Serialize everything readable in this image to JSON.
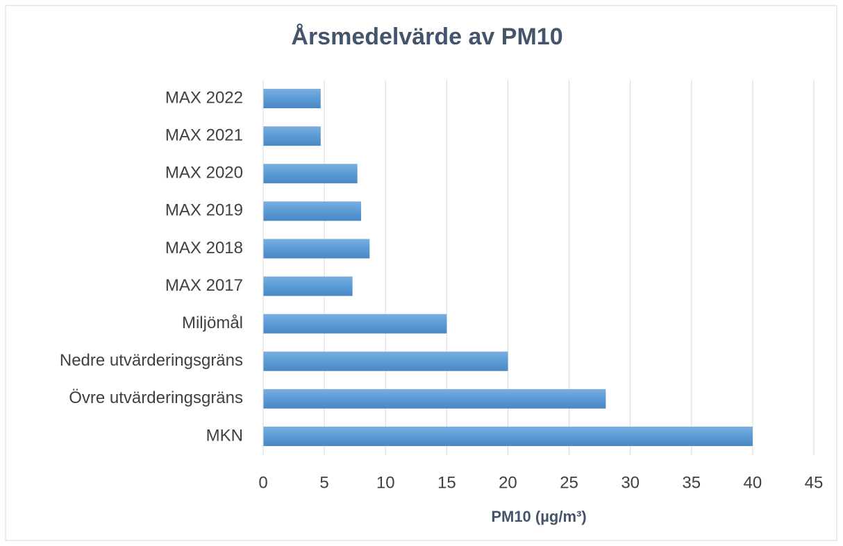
{
  "chart_data": {
    "type": "barh",
    "title": "Årsmedelvärde av PM10",
    "x_label": "PM10 (µg/m³)",
    "categories": [
      "MAX 2022",
      "MAX 2021",
      "MAX 2020",
      "MAX 2019",
      "MAX 2018",
      "MAX 2017",
      "Miljömål",
      "Nedre utvärderingsgräns",
      "Övre utvärderingsgräns",
      "MKN"
    ],
    "values": [
      4.7,
      4.7,
      7.7,
      8.0,
      8.7,
      7.3,
      15,
      20,
      28,
      40
    ],
    "color": "#5b9bd5",
    "xlim": [
      0,
      45
    ],
    "xticks": [
      0,
      5,
      10,
      15,
      20,
      25,
      30,
      35,
      40,
      45
    ],
    "grid": true
  }
}
